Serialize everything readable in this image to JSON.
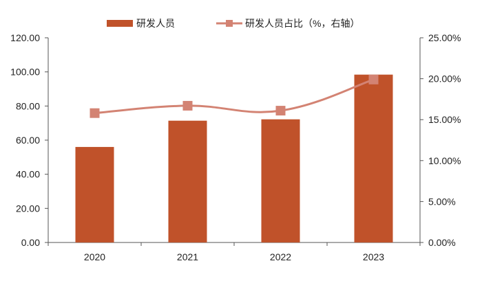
{
  "chart_data": {
    "type": "bar+line",
    "categories": [
      "2020",
      "2021",
      "2022",
      "2023"
    ],
    "series": [
      {
        "name": "研发人员",
        "type": "bar",
        "axis": "left",
        "values": [
          56.0,
          71.4,
          72.2,
          98.4
        ],
        "color": "#C0522A"
      },
      {
        "name": "研发人员占比（%，右轴）",
        "type": "line",
        "axis": "right",
        "values": [
          15.8,
          16.7,
          16.1,
          19.9
        ],
        "color": "#D38373"
      }
    ],
    "left_axis": {
      "range": [
        0,
        120
      ],
      "ticks": [
        "0.00",
        "20.00",
        "40.00",
        "60.00",
        "80.00",
        "100.00",
        "120.00"
      ]
    },
    "right_axis": {
      "range": [
        0,
        25
      ],
      "ticks": [
        "0.00%",
        "5.00%",
        "10.00%",
        "15.00%",
        "20.00%",
        "25.00%"
      ]
    },
    "legend": "top",
    "grid": false
  }
}
